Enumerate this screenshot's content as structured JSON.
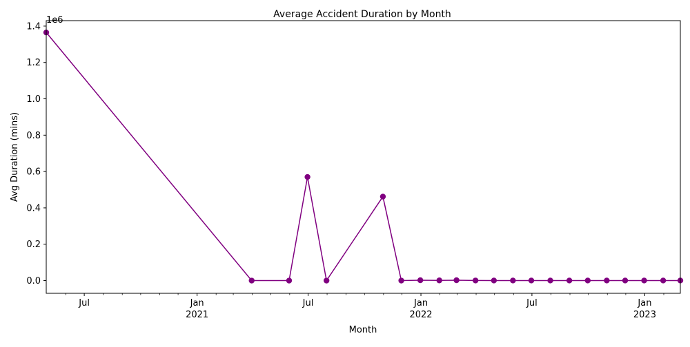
{
  "chart_data": {
    "type": "line",
    "title": "Average Accident Duration by Month",
    "xlabel": "Month",
    "ylabel": "Avg Duration (mins)",
    "y_offset_label": "1e6",
    "ylim": [
      -70000,
      1430000
    ],
    "xlim": [
      "2020-04-30",
      "2023-02-28"
    ],
    "grid": false,
    "line_color": "#800080",
    "marker": "circle",
    "x_ticks_major": [
      {
        "date": "2020-07-01",
        "label": "Jul",
        "sublabel": ""
      },
      {
        "date": "2021-01-01",
        "label": "Jan",
        "sublabel": "2021"
      },
      {
        "date": "2021-07-01",
        "label": "Jul",
        "sublabel": ""
      },
      {
        "date": "2022-01-01",
        "label": "Jan",
        "sublabel": "2022"
      },
      {
        "date": "2022-07-01",
        "label": "Jul",
        "sublabel": ""
      },
      {
        "date": "2023-01-01",
        "label": "Jan",
        "sublabel": "2023"
      }
    ],
    "y_ticks": [
      {
        "value": 0,
        "label": "0.0"
      },
      {
        "value": 200000,
        "label": "0.2"
      },
      {
        "value": 400000,
        "label": "0.4"
      },
      {
        "value": 600000,
        "label": "0.6"
      },
      {
        "value": 800000,
        "label": "0.8"
      },
      {
        "value": 1000000,
        "label": "1.0"
      },
      {
        "value": 1200000,
        "label": "1.2"
      },
      {
        "value": 1400000,
        "label": "1.4"
      }
    ],
    "series": [
      {
        "x": [
          "2020-04-30",
          "2021-03-31",
          "2021-05-31",
          "2021-06-30",
          "2021-07-31",
          "2021-10-31",
          "2021-11-30",
          "2021-12-31",
          "2022-01-31",
          "2022-02-28",
          "2022-03-31",
          "2022-04-30",
          "2022-05-31",
          "2022-06-30",
          "2022-07-31",
          "2022-08-31",
          "2022-09-30",
          "2022-10-31",
          "2022-11-30",
          "2022-12-31",
          "2023-01-31",
          "2023-02-28"
        ],
        "values": [
          1365000,
          0,
          0,
          570000,
          0,
          462000,
          0,
          2000,
          1000,
          2000,
          500,
          300,
          200,
          200,
          200,
          200,
          200,
          200,
          200,
          200,
          200,
          200
        ]
      }
    ]
  }
}
